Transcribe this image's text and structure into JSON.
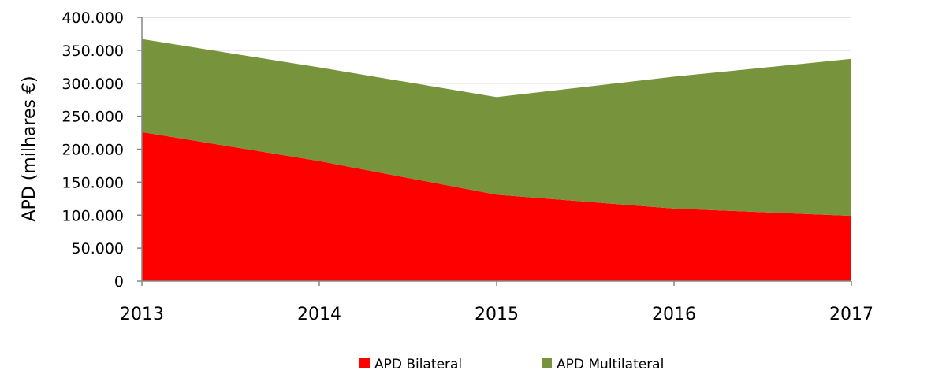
{
  "chart_data": {
    "type": "area",
    "stacked": true,
    "x": [
      "2013",
      "2014",
      "2015",
      "2016",
      "2017"
    ],
    "series": [
      {
        "name": "APD Bilateral",
        "color": "#ff0000",
        "values": [
          226000,
          182000,
          131000,
          110000,
          99000
        ]
      },
      {
        "name": "APD Multilateral",
        "color": "#77933c",
        "values": [
          141000,
          142000,
          148000,
          200000,
          238000
        ]
      }
    ],
    "ylabel": "APD (milhares €)",
    "ylim": [
      0,
      400000
    ],
    "yticks": [
      "0",
      "50.000",
      "100.000",
      "150.000",
      "200.000",
      "250.000",
      "300.000",
      "350.000",
      "400.000"
    ],
    "grid": true,
    "legend": "bottom"
  }
}
